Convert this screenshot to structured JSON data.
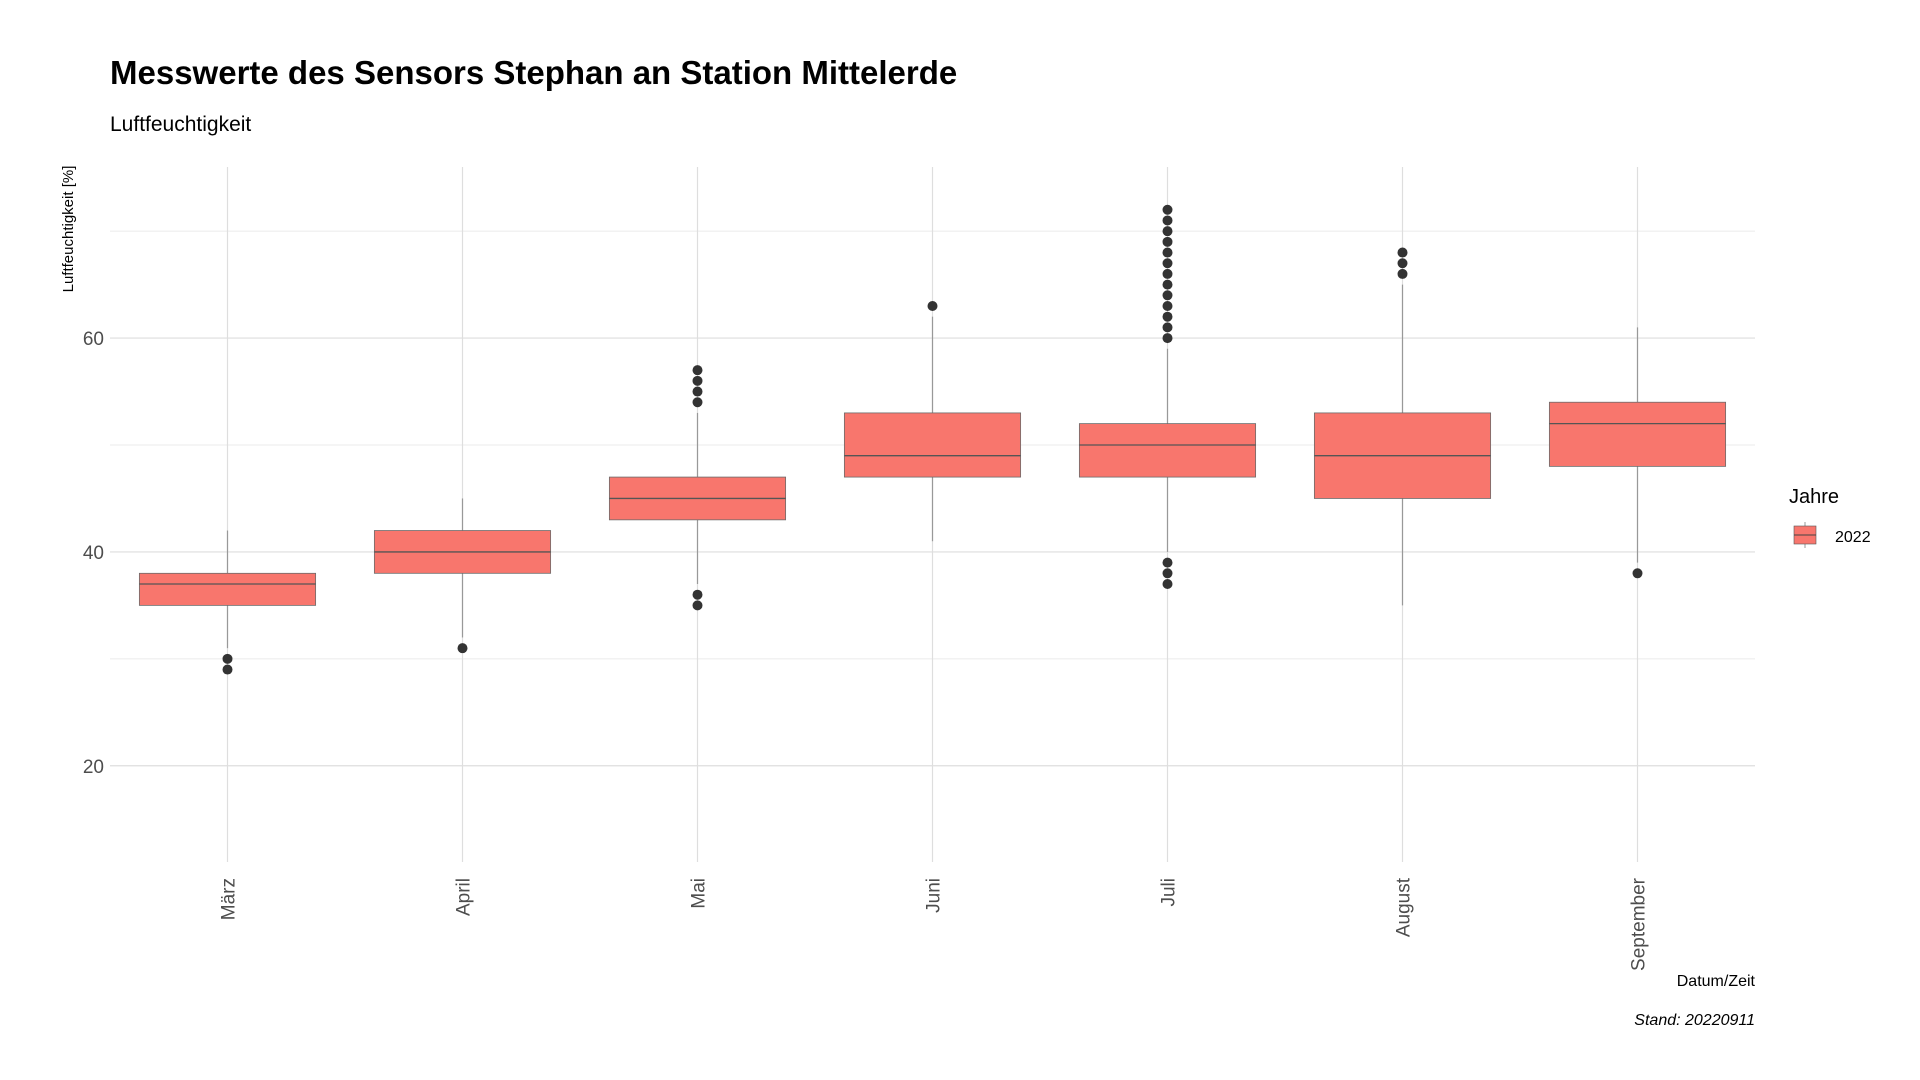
{
  "chart_data": {
    "type": "box",
    "title": "Messwerte des Sensors Stephan an Station Mittelerde",
    "subtitle": "Luftfeuchtigkeit",
    "ylabel": "Luftfeuchtigkeit [%]",
    "xlabel": "Datum/Zeit",
    "caption": "Stand: 20220911",
    "ylim": [
      11,
      76
    ],
    "yticks": [
      20,
      40,
      60
    ],
    "grid": true,
    "legend": {
      "title": "Jahre",
      "position": "right",
      "entries": [
        {
          "label": "2022",
          "color": "#F8766D"
        }
      ]
    },
    "categories": [
      "März",
      "April",
      "Mai",
      "Juni",
      "Juli",
      "August",
      "September"
    ],
    "series": [
      {
        "name": "2022",
        "color": "#F8766D",
        "boxes": [
          {
            "category": "März",
            "whisker_low": 31,
            "q1": 35,
            "median": 37,
            "q3": 38,
            "whisker_high": 42,
            "outliers": [
              30,
              29
            ]
          },
          {
            "category": "April",
            "whisker_low": 32,
            "q1": 38,
            "median": 40,
            "q3": 42,
            "whisker_high": 45,
            "outliers": [
              31
            ]
          },
          {
            "category": "Mai",
            "whisker_low": 37,
            "q1": 43,
            "median": 45,
            "q3": 47,
            "whisker_high": 53,
            "outliers": [
              54,
              55,
              56,
              57,
              36,
              35
            ]
          },
          {
            "category": "Juni",
            "whisker_low": 41,
            "q1": 47,
            "median": 49,
            "q3": 53,
            "whisker_high": 62,
            "outliers": [
              63
            ]
          },
          {
            "category": "Juli",
            "whisker_low": 40,
            "q1": 47,
            "median": 50,
            "q3": 52,
            "whisker_high": 59,
            "outliers": [
              60,
              61,
              62,
              63,
              64,
              65,
              66,
              67,
              68,
              69,
              70,
              71,
              72,
              39,
              38,
              37
            ]
          },
          {
            "category": "August",
            "whisker_low": 35,
            "q1": 45,
            "median": 49,
            "q3": 53,
            "whisker_high": 65,
            "outliers": [
              66,
              67,
              68
            ]
          },
          {
            "category": "September",
            "whisker_low": 39,
            "q1": 48,
            "median": 52,
            "q3": 54,
            "whisker_high": 61,
            "outliers": [
              38
            ]
          }
        ]
      }
    ]
  }
}
